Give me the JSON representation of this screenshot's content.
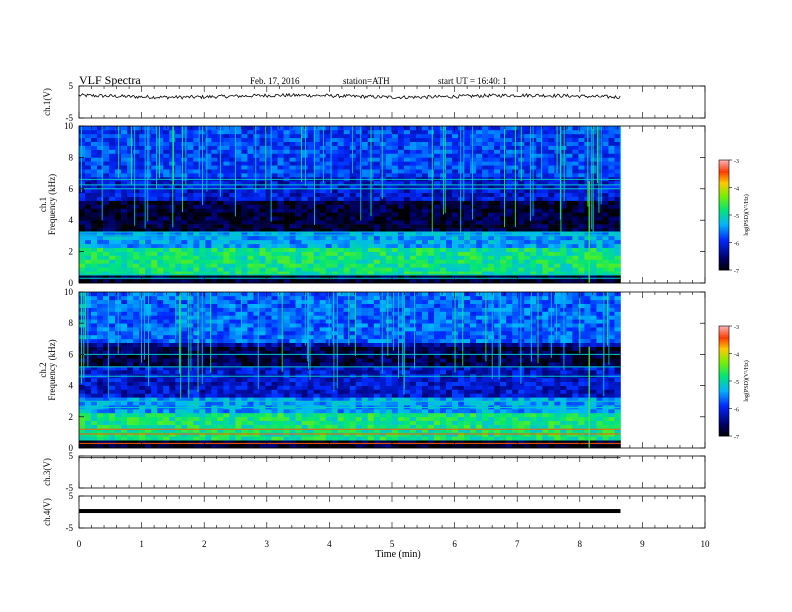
{
  "header": {
    "title": "VLF  Spectra",
    "date": "Feb. 17, 2016",
    "station": "station=ATH",
    "start": "start  UT  =    16:40: 1"
  },
  "chart_data": [
    {
      "type": "line",
      "panel": "ch1-waveform",
      "ylabel": "ch.1(V)",
      "ylim": [
        -5,
        5
      ],
      "yticks": [
        "5",
        "-5"
      ],
      "x_data_range": [
        0,
        8.65
      ],
      "level": 1.8,
      "color": "#000000"
    },
    {
      "type": "heatmap",
      "panel": "ch1-spectrogram",
      "ylabel": "ch.1\nFrequency  (kHz)",
      "ylim": [
        0,
        10
      ],
      "yticks": [
        "0",
        "2",
        "4",
        "6",
        "8",
        "10"
      ],
      "x_data_range": [
        0,
        8.65
      ],
      "lines_khz": [
        0.3,
        0.55,
        3.05,
        3.25,
        6.0,
        6.25,
        6.6
      ],
      "colorbar": {
        "label": "log(PSD)(V²/Hz)",
        "ticks": [
          "-3",
          "-4",
          "-5",
          "-6",
          "-7"
        ],
        "range": [
          -7,
          -3
        ]
      }
    },
    {
      "type": "heatmap",
      "panel": "ch2-spectrogram",
      "ylabel": "ch.2\nFrequency  (kHz)",
      "ylim": [
        0,
        10
      ],
      "yticks": [
        "0",
        "2",
        "4",
        "6",
        "8",
        "10"
      ],
      "x_data_range": [
        0,
        8.65
      ],
      "lines_khz": [
        0.3,
        0.9,
        1.2,
        2.6,
        3.0,
        4.6,
        5.2,
        6.0
      ],
      "colorbar": {
        "label": "log(PSD)(V²/Hz)",
        "ticks": [
          "-3",
          "-4",
          "-5",
          "-6",
          "-7"
        ],
        "range": [
          -7,
          -3
        ]
      }
    },
    {
      "type": "line",
      "panel": "ch3-waveform",
      "ylabel": "ch.3(V)",
      "ylim": [
        -5,
        5
      ],
      "yticks": [
        "5",
        "-5"
      ],
      "x_data_range": [
        0,
        8.65
      ],
      "level": 4.5
    },
    {
      "type": "line",
      "panel": "ch4-waveform",
      "ylabel": "ch.4(V)",
      "ylim": [
        -5,
        5
      ],
      "yticks": [
        "5",
        "-5"
      ],
      "x_data_range": [
        0,
        8.65
      ],
      "level": 0.3
    }
  ],
  "xaxis": {
    "label": "Time  (min)",
    "xlim": [
      0,
      10
    ],
    "ticks": [
      "0",
      "1",
      "2",
      "3",
      "4",
      "5",
      "6",
      "7",
      "8",
      "9",
      "10"
    ],
    "event_time": 8.15
  }
}
